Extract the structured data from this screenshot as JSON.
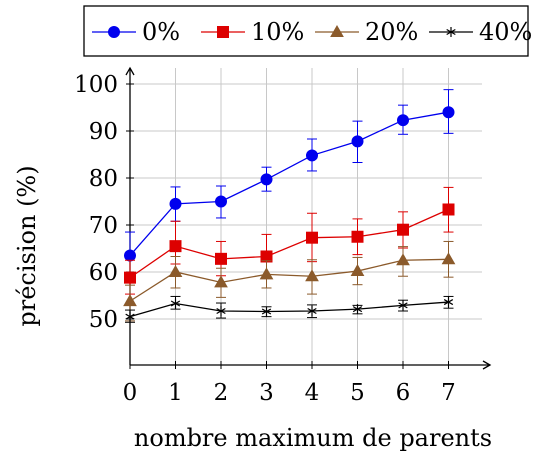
{
  "chart_data": {
    "type": "line",
    "xlabel": "nombre maximum de parents",
    "ylabel": "précision (%)",
    "x": [
      0,
      1,
      2,
      3,
      4,
      5,
      6,
      7
    ],
    "xticks": [
      "0",
      "1",
      "2",
      "3",
      "4",
      "5",
      "6",
      "7"
    ],
    "yticks": [
      "50",
      "60",
      "70",
      "80",
      "90",
      "100"
    ],
    "xlim": [
      0,
      8
    ],
    "ylim": [
      40,
      103
    ],
    "grid": true,
    "legend_position": "top",
    "series": [
      {
        "name": "0%",
        "color": "#0000ee",
        "marker": "circle",
        "values": [
          63.5,
          74.5,
          75,
          79.7,
          84.8,
          87.8,
          92.3,
          94
        ],
        "error_low": [
          58.8,
          70.8,
          71.5,
          77.2,
          81.5,
          83.3,
          89.3,
          89.5
        ],
        "error_high": [
          68.5,
          78.1,
          78.3,
          82.3,
          88.3,
          92.1,
          95.5,
          98.8
        ]
      },
      {
        "name": "10%",
        "color": "#dd0000",
        "marker": "square",
        "values": [
          58.8,
          65.5,
          62.8,
          63.3,
          67.3,
          67.5,
          69,
          73.3
        ],
        "error_low": [
          55.3,
          61.7,
          59.2,
          58.6,
          62.2,
          63.7,
          65.1,
          68.5
        ],
        "error_high": [
          62.5,
          70.8,
          66.5,
          68,
          72.5,
          71.3,
          72.8,
          78
        ]
      },
      {
        "name": "20%",
        "color": "#8b5a2b",
        "marker": "triangle",
        "values": [
          53.8,
          60,
          57.8,
          59.5,
          59.1,
          60.2,
          62.5,
          62.7
        ],
        "error_low": [
          49.6,
          56.6,
          54.6,
          56.6,
          55.3,
          57.3,
          59.1,
          58.9
        ],
        "error_high": [
          57.2,
          63.3,
          60.8,
          62.4,
          62.6,
          63.1,
          65.4,
          66.5
        ]
      },
      {
        "name": "40%",
        "color": "#000000",
        "marker": "star",
        "values": [
          50.5,
          53.3,
          51.7,
          51.6,
          51.7,
          52.1,
          52.9,
          53.6
        ],
        "error_low": [
          49.3,
          52.1,
          50.2,
          50.5,
          50.3,
          51.1,
          51.7,
          52.3
        ],
        "error_high": [
          51.9,
          54.8,
          53.4,
          52.6,
          53,
          52.9,
          54,
          54.8
        ]
      }
    ]
  }
}
